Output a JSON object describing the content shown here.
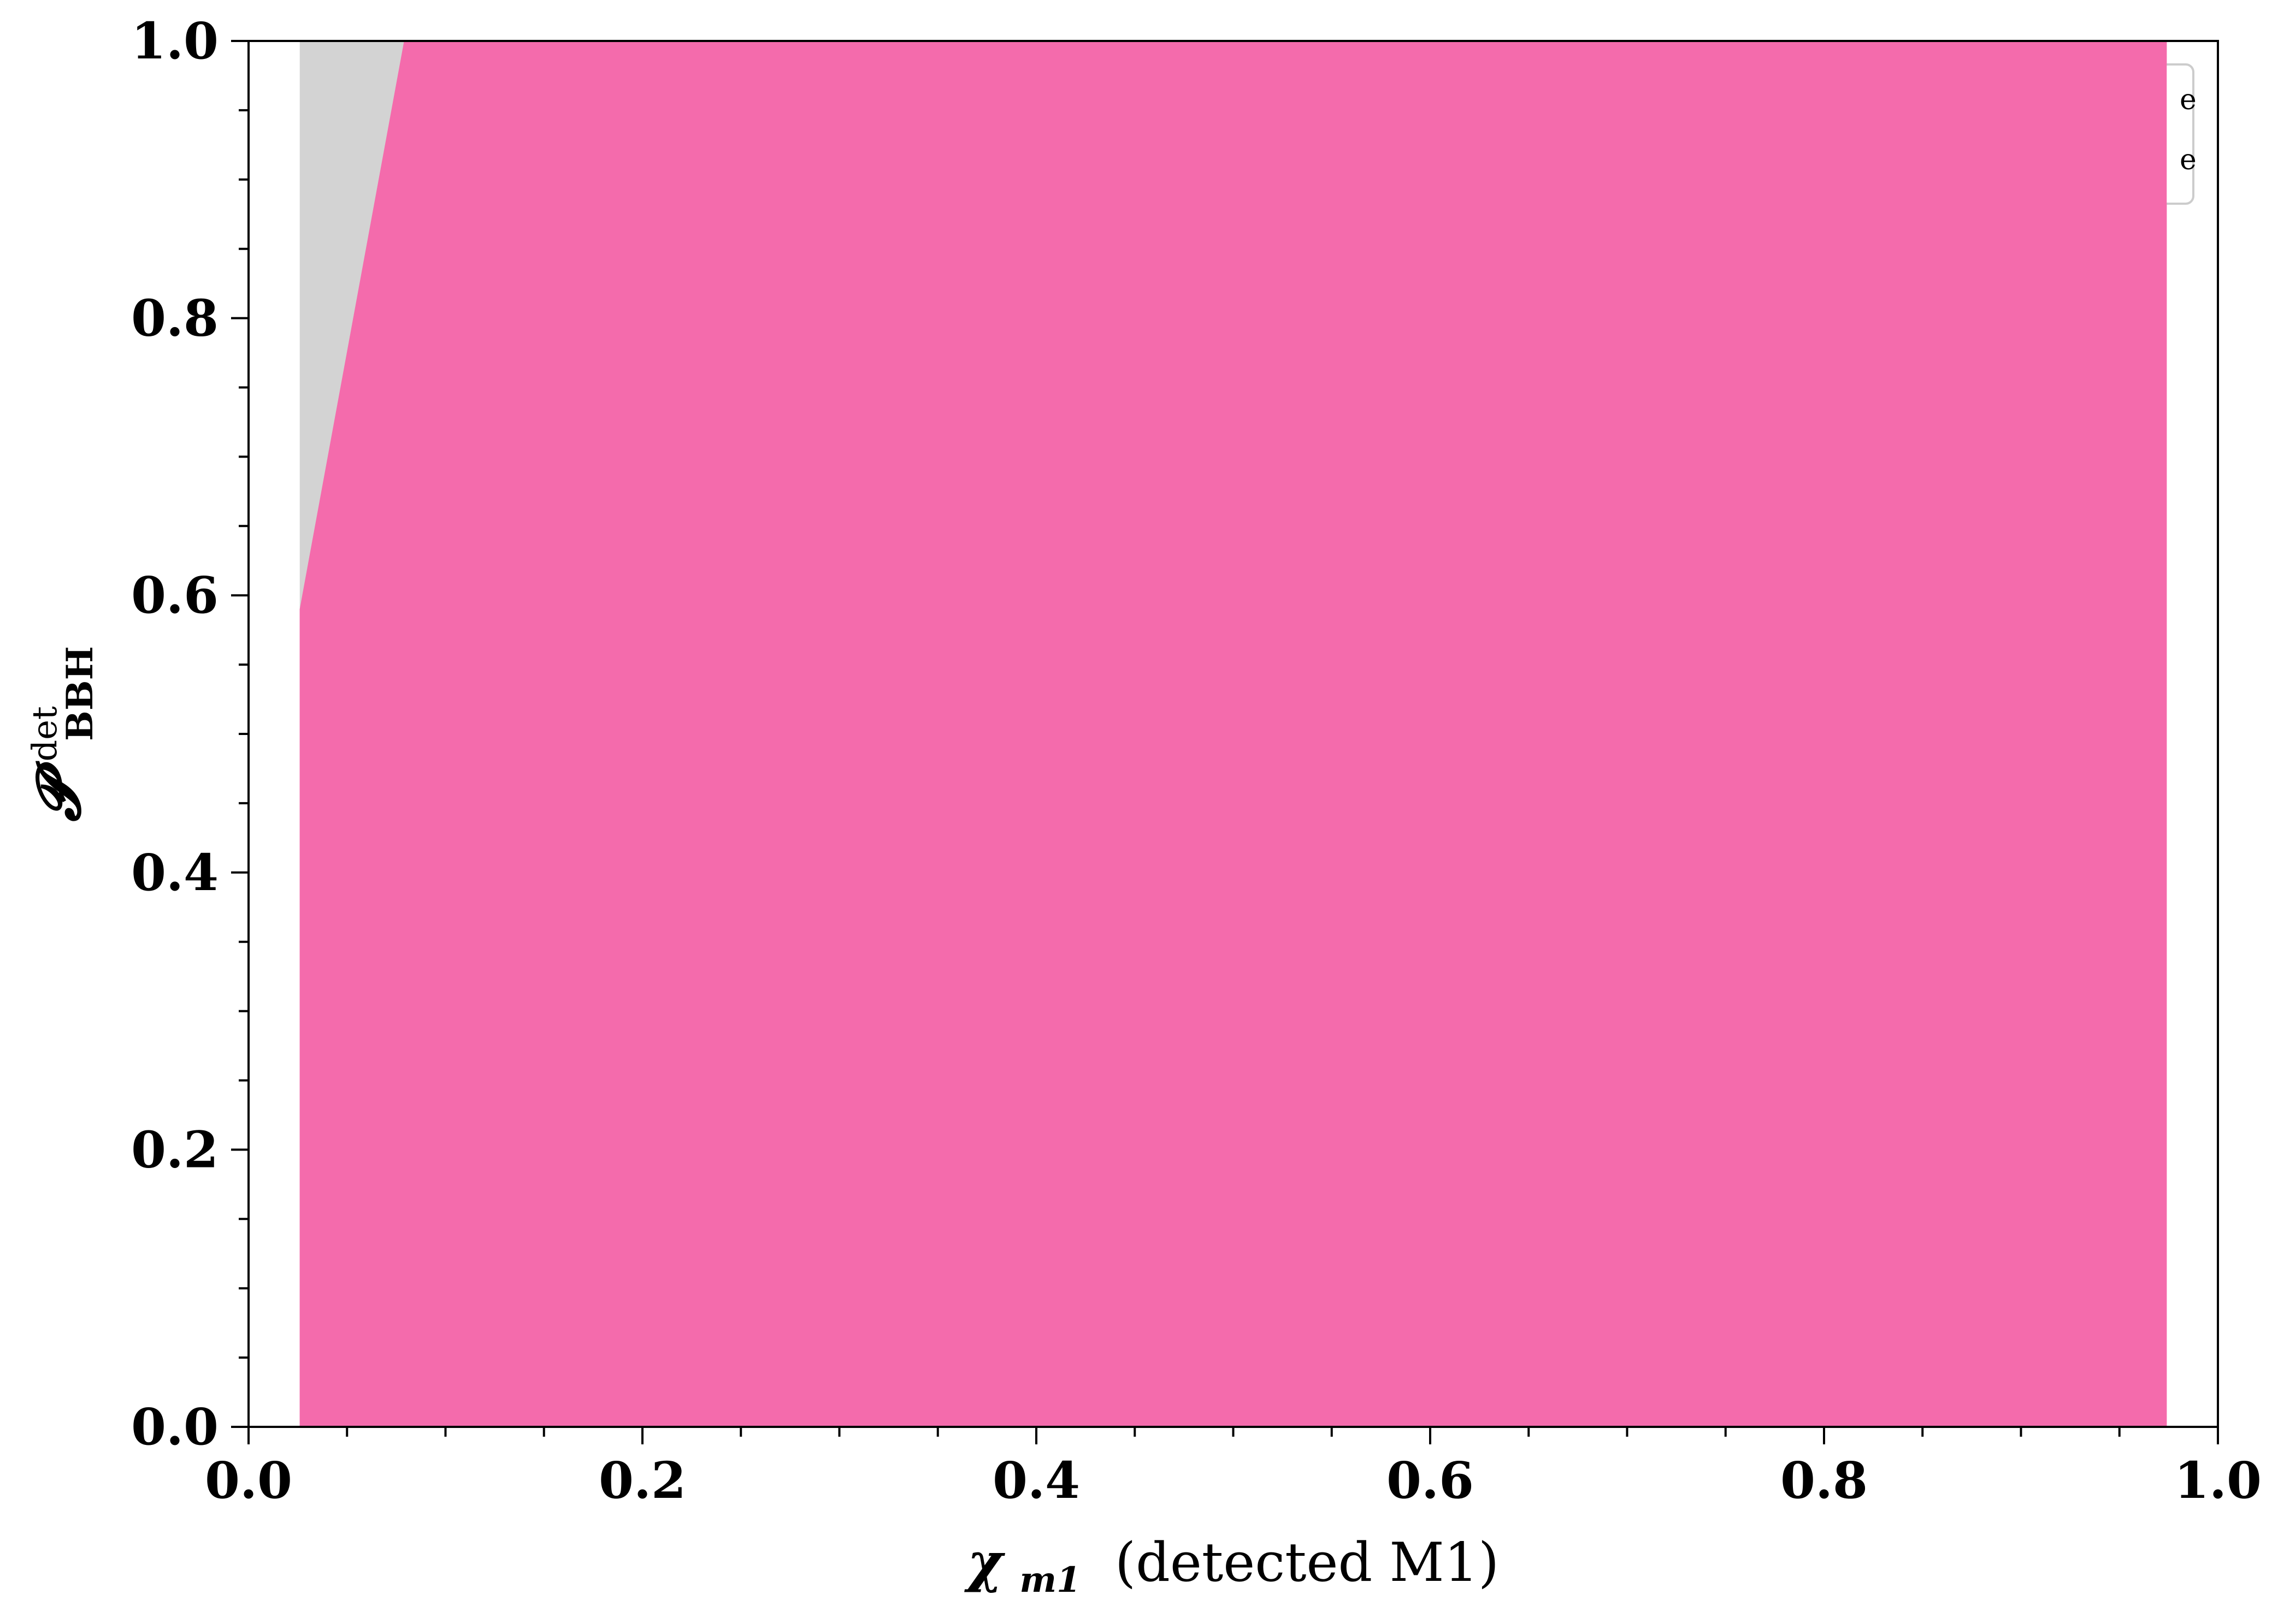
{
  "chart_data": {
    "type": "area",
    "x_range": [
      0.0,
      1.0
    ],
    "y_range": [
      0.0,
      1.0
    ],
    "x_ticks": [
      "0.0",
      "0.2",
      "0.4",
      "0.6",
      "0.8",
      "1.0"
    ],
    "y_ticks": [
      "0.0",
      "0.2",
      "0.4",
      "0.6",
      "0.8",
      "1.0"
    ],
    "x_tick_values": [
      0.0,
      0.2,
      0.4,
      0.6,
      0.8,
      1.0
    ],
    "y_tick_values": [
      0.0,
      0.2,
      0.4,
      0.6,
      0.8,
      1.0
    ],
    "xlabel": {
      "symbol": "χ",
      "subscript": "m1",
      "suffix": " (detected M1)"
    },
    "ylabel": {
      "symbol": "𝓟",
      "superscript": "det",
      "subscript": "BBH"
    },
    "grid": false,
    "legend_placement": "top-right",
    "legend_entries": [
      "e",
      "e"
    ],
    "series": [
      {
        "color": "#d3d3d3",
        "points": [
          [
            0.026,
            0.0
          ],
          [
            0.026,
            1.0
          ],
          [
            0.079,
            1.0
          ],
          [
            0.079,
            0.0
          ]
        ]
      },
      {
        "color": "#f46bac",
        "points": [
          [
            0.026,
            0.0
          ],
          [
            0.026,
            0.59
          ],
          [
            0.079,
            1.0
          ],
          [
            0.974,
            1.0
          ],
          [
            0.974,
            0.0
          ]
        ]
      }
    ]
  }
}
